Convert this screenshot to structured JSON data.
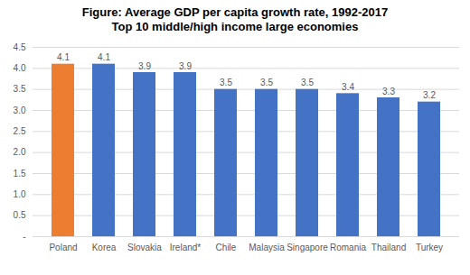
{
  "chart_data": {
    "type": "bar",
    "title": "Figure: Average GDP per capita growth rate, 1992-2017",
    "subtitle": "Top 10 middle/high income large economies",
    "categories": [
      "Poland",
      "Korea",
      "Slovakia",
      "Ireland*",
      "Chile",
      "Malaysia",
      "Singapore",
      "Romania",
      "Thailand",
      "Turkey"
    ],
    "values": [
      4.1,
      4.1,
      3.9,
      3.9,
      3.5,
      3.5,
      3.5,
      3.4,
      3.3,
      3.2
    ],
    "colors": [
      "#ed7d31",
      "#4472c4",
      "#4472c4",
      "#4472c4",
      "#4472c4",
      "#4472c4",
      "#4472c4",
      "#4472c4",
      "#4472c4",
      "#4472c4"
    ],
    "ylim": [
      0,
      4.5
    ],
    "yticks": [
      {
        "value": 0,
        "label": "-"
      },
      0.5,
      {
        "value": 1,
        "label": "1.0"
      },
      1.5,
      {
        "value": 2,
        "label": "2.0"
      },
      2.5,
      {
        "value": 3,
        "label": "3.0"
      },
      3.5,
      {
        "value": 4,
        "label": "4.0"
      },
      4.5
    ],
    "grid": true,
    "data_labels": true
  }
}
